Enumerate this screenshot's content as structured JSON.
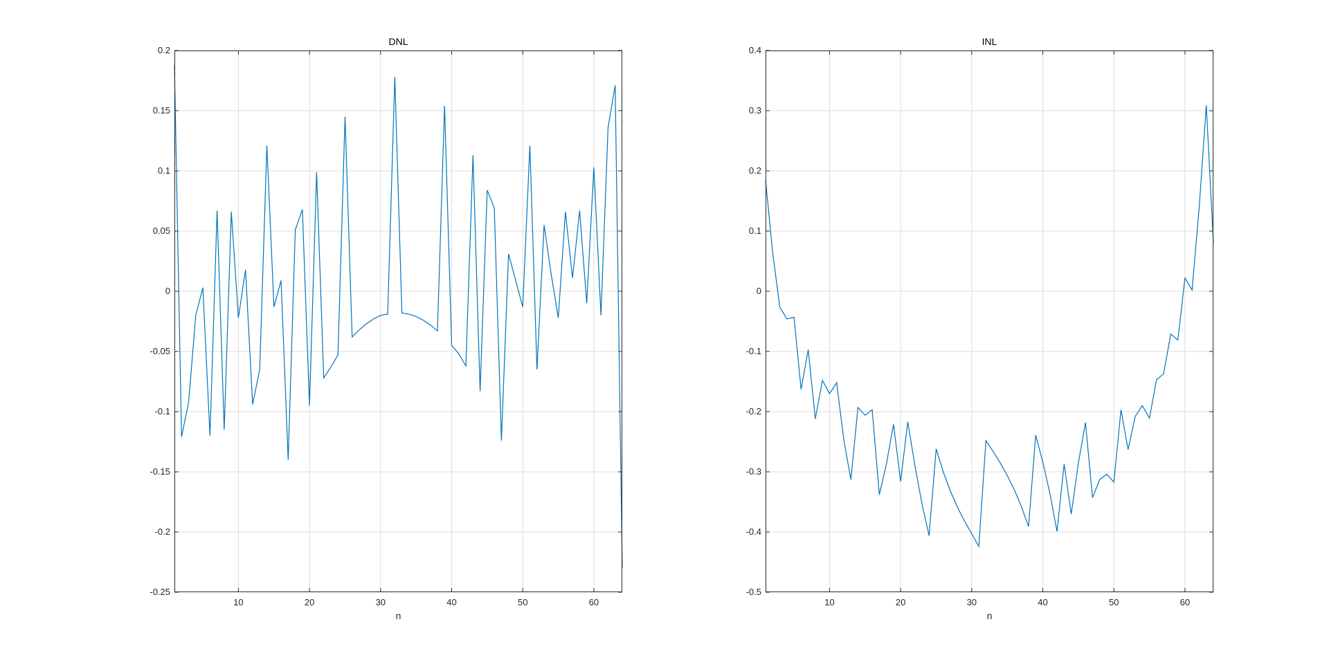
{
  "colors": {
    "line": "#0072bd",
    "grid": "#dcdcdc",
    "axis": "#262626",
    "background": "#ffffff"
  },
  "chart_data": [
    {
      "type": "line",
      "title": "DNL",
      "xlabel": "n",
      "ylabel": "",
      "xlim": [
        1,
        64
      ],
      "ylim": [
        -0.25,
        0.2
      ],
      "grid": true,
      "xticks": [
        10,
        20,
        30,
        40,
        50,
        60
      ],
      "xtick_labels": [
        "10",
        "20",
        "30",
        "40",
        "50",
        "60"
      ],
      "yticks": [
        -0.25,
        -0.2,
        -0.15,
        -0.1,
        -0.05,
        0,
        0.05,
        0.1,
        0.15,
        0.2
      ],
      "ytick_labels": [
        "-0.25",
        "-0.2",
        "-0.15",
        "-0.1",
        "-0.05",
        "0",
        "0.05",
        "0.1",
        "0.15",
        "0.2"
      ],
      "series": [
        {
          "x": [
            1,
            2,
            3,
            4,
            5,
            6,
            7,
            8,
            9,
            10,
            11,
            12,
            13,
            14,
            15,
            16,
            17,
            18,
            19,
            20,
            21,
            22,
            23,
            24,
            25,
            26,
            27,
            28,
            29,
            30,
            31,
            32,
            33,
            34,
            35,
            36,
            37,
            38,
            39,
            40,
            41,
            42,
            43,
            44,
            45,
            46,
            47,
            48,
            49,
            50,
            51,
            52,
            53,
            54,
            55,
            56,
            57,
            58,
            59,
            60,
            61,
            62,
            63,
            64
          ],
          "y": [
            0.188,
            -0.121,
            -0.092,
            -0.02,
            0.003,
            -0.12,
            0.067,
            -0.115,
            0.066,
            -0.022,
            0.018,
            -0.094,
            -0.065,
            0.121,
            -0.013,
            0.009,
            -0.14,
            0.051,
            0.068,
            -0.095,
            0.099,
            -0.072,
            -0.063,
            -0.053,
            0.145,
            -0.038,
            -0.032,
            -0.027,
            -0.023,
            -0.02,
            -0.019,
            0.178,
            -0.018,
            -0.019,
            -0.021,
            -0.024,
            -0.028,
            -0.033,
            0.154,
            -0.045,
            -0.052,
            -0.062,
            0.113,
            -0.083,
            0.084,
            0.069,
            -0.124,
            0.031,
            0.009,
            -0.013,
            0.121,
            -0.065,
            0.055,
            0.014,
            -0.022,
            0.066,
            0.011,
            0.067,
            -0.01,
            0.103,
            -0.02,
            0.136,
            0.171,
            -0.23
          ]
        }
      ]
    },
    {
      "type": "line",
      "title": "INL",
      "xlabel": "n",
      "ylabel": "",
      "xlim": [
        1,
        64
      ],
      "ylim": [
        -0.5,
        0.4
      ],
      "grid": true,
      "xticks": [
        10,
        20,
        30,
        40,
        50,
        60
      ],
      "xtick_labels": [
        "10",
        "20",
        "30",
        "40",
        "50",
        "60"
      ],
      "yticks": [
        -0.5,
        -0.4,
        -0.3,
        -0.2,
        -0.1,
        0,
        0.1,
        0.2,
        0.3,
        0.4
      ],
      "ytick_labels": [
        "-0.5",
        "-0.4",
        "-0.3",
        "-0.2",
        "-0.1",
        "0",
        "0.1",
        "0.2",
        "0.3",
        "0.4"
      ],
      "series": [
        {
          "x": [
            1,
            2,
            3,
            4,
            5,
            6,
            7,
            8,
            9,
            10,
            11,
            12,
            13,
            14,
            15,
            16,
            17,
            18,
            19,
            20,
            21,
            22,
            23,
            24,
            25,
            26,
            27,
            28,
            29,
            30,
            31,
            32,
            33,
            34,
            35,
            36,
            37,
            38,
            39,
            40,
            41,
            42,
            43,
            44,
            45,
            46,
            47,
            48,
            49,
            50,
            51,
            52,
            53,
            54,
            55,
            56,
            57,
            58,
            59,
            60,
            61,
            62,
            63,
            64
          ],
          "y": [
            0.185,
            0.064,
            -0.026,
            -0.046,
            -0.043,
            -0.163,
            -0.097,
            -0.212,
            -0.148,
            -0.17,
            -0.152,
            -0.246,
            -0.313,
            -0.193,
            -0.206,
            -0.197,
            -0.338,
            -0.287,
            -0.221,
            -0.316,
            -0.217,
            -0.289,
            -0.353,
            -0.406,
            -0.262,
            -0.3,
            -0.332,
            -0.359,
            -0.382,
            -0.403,
            -0.424,
            -0.248,
            -0.266,
            -0.285,
            -0.306,
            -0.33,
            -0.358,
            -0.391,
            -0.239,
            -0.284,
            -0.336,
            -0.399,
            -0.287,
            -0.37,
            -0.286,
            -0.218,
            -0.343,
            -0.313,
            -0.304,
            -0.317,
            -0.197,
            -0.263,
            -0.208,
            -0.19,
            -0.211,
            -0.147,
            -0.137,
            -0.071,
            -0.081,
            0.022,
            0.002,
            0.139,
            0.309,
            0.08
          ]
        }
      ]
    }
  ]
}
